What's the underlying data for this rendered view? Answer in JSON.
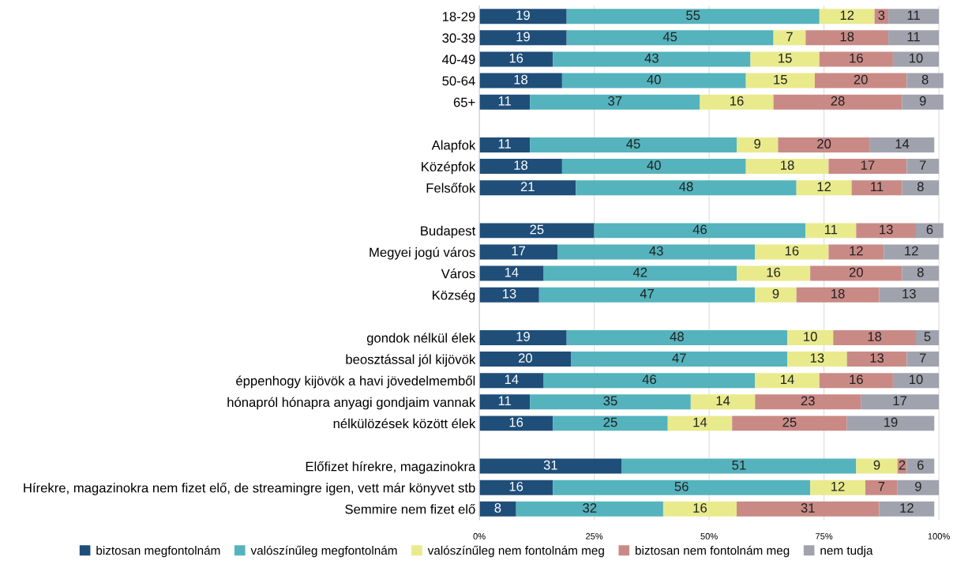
{
  "chart_data": {
    "type": "bar",
    "orientation": "horizontal",
    "stacked": true,
    "data_labels": true,
    "grid": "x",
    "legend": "bottom",
    "categories": [
      "18-29",
      "30-39",
      "40-49",
      "50-64",
      "65+",
      null,
      "Alapfok",
      "Középfok",
      "Felsőfok",
      null,
      "Budapest",
      "Megyei jogú város",
      "Város",
      "Község",
      null,
      "gondok nélkül élek",
      "beosztással jól kijövök",
      "éppenhogy kijövök a havi jövedelmemből",
      "hónapról hónapra anyagi gondjaim vannak",
      "nélkülözések között élek",
      null,
      "Előfizet hírekre, magazinokra",
      "Hírekre, magazinokra nem fizet elő, de streamingre igen, vett már könyvet stb",
      "Semmire nem fizet elő"
    ],
    "xlim": [
      0,
      101
    ],
    "xticks": [
      {
        "value": 0,
        "label": "0%"
      },
      {
        "value": 25,
        "label": "25%"
      },
      {
        "value": 50,
        "label": "50%"
      },
      {
        "value": 75,
        "label": "75%"
      },
      {
        "value": 100,
        "label": "100%"
      }
    ],
    "series": [
      {
        "name": "biztosan megfontolnám",
        "color": "#1f4e79",
        "values": [
          19,
          19,
          16,
          18,
          11,
          null,
          11,
          18,
          21,
          null,
          25,
          17,
          14,
          13,
          null,
          19,
          20,
          14,
          11,
          16,
          null,
          31,
          16,
          8
        ]
      },
      {
        "name": "valószínűleg megfontolnám",
        "color": "#54b3bd",
        "values": [
          55,
          45,
          43,
          40,
          37,
          null,
          45,
          40,
          48,
          null,
          46,
          43,
          42,
          47,
          null,
          48,
          47,
          46,
          35,
          25,
          null,
          51,
          56,
          32
        ]
      },
      {
        "name": "valószínűleg nem fontolnám meg",
        "color": "#e9ea8c",
        "values": [
          12,
          7,
          15,
          15,
          16,
          null,
          9,
          18,
          12,
          null,
          11,
          16,
          16,
          9,
          null,
          10,
          13,
          14,
          14,
          14,
          null,
          9,
          12,
          16
        ]
      },
      {
        "name": "biztosan nem fontolnám meg",
        "color": "#c98a86",
        "values": [
          3,
          18,
          16,
          20,
          28,
          null,
          20,
          17,
          11,
          null,
          13,
          12,
          20,
          18,
          null,
          18,
          13,
          16,
          23,
          25,
          null,
          2,
          7,
          31
        ]
      },
      {
        "name": "nem tudja",
        "color": "#a0a3ae",
        "values": [
          11,
          11,
          10,
          8,
          9,
          null,
          14,
          7,
          8,
          null,
          6,
          12,
          8,
          13,
          null,
          5,
          7,
          10,
          17,
          19,
          null,
          6,
          9,
          12
        ]
      }
    ]
  }
}
